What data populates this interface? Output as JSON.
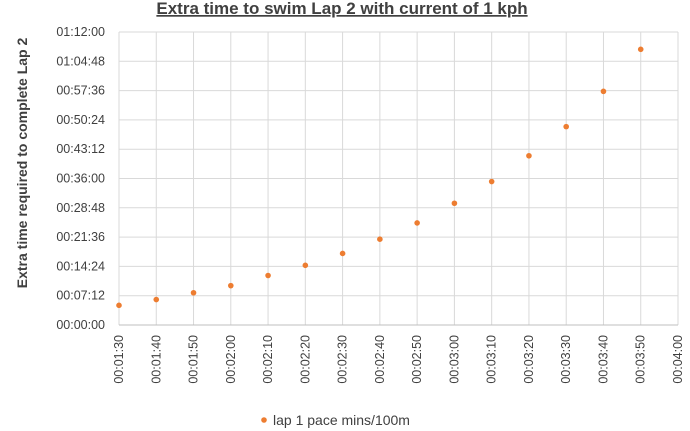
{
  "chart_data": {
    "type": "scatter",
    "title": "Extra time to swim Lap 2 with current of 1 kph",
    "xlabel": "",
    "ylabel": "Extra time required to complete Lap 2",
    "x_tick_labels": [
      "00:01:30",
      "00:01:40",
      "00:01:50",
      "00:02:00",
      "00:02:10",
      "00:02:20",
      "00:02:30",
      "00:02:40",
      "00:02:50",
      "00:03:00",
      "00:03:10",
      "00:03:20",
      "00:03:30",
      "00:03:40",
      "00:03:50",
      "00:04:00"
    ],
    "y_tick_labels": [
      "00:00:00",
      "00:07:12",
      "00:14:24",
      "00:21:36",
      "00:28:48",
      "00:36:00",
      "00:43:12",
      "00:50:24",
      "00:57:36",
      "01:04:48",
      "01:12:00"
    ],
    "xlim_seconds": [
      90,
      240
    ],
    "ylim_seconds": [
      0,
      4320
    ],
    "grid": true,
    "legend_position": "bottom",
    "series": [
      {
        "name": "lap 1 pace mins/100m",
        "color": "#ed7d31",
        "x_labels": [
          "00:01:30",
          "00:01:40",
          "00:01:50",
          "00:02:00",
          "00:02:10",
          "00:02:20",
          "00:02:30",
          "00:02:40",
          "00:02:50",
          "00:03:00",
          "00:03:10",
          "00:03:20",
          "00:03:30",
          "00:03:40",
          "00:03:50"
        ],
        "x_seconds": [
          90,
          100,
          110,
          120,
          130,
          140,
          150,
          160,
          170,
          180,
          190,
          200,
          210,
          220,
          230
        ],
        "y_seconds": [
          290,
          375,
          475,
          580,
          730,
          880,
          1055,
          1265,
          1505,
          1795,
          2115,
          2495,
          2925,
          3445,
          4065
        ]
      }
    ]
  }
}
